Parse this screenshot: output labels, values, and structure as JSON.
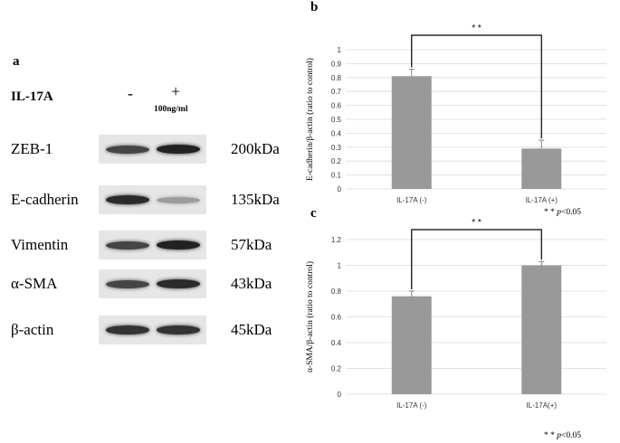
{
  "panel_a": {
    "letter": "a",
    "treatment_label": "IL-17A",
    "minus": "-",
    "plus": "+",
    "dose": "100ng/ml",
    "blots": [
      {
        "protein": "ZEB-1",
        "kda": "200kDa",
        "band_minus": 0.75,
        "band_plus": 0.95
      },
      {
        "protein": "E-cadherin",
        "kda": "135kDa",
        "band_minus": 0.9,
        "band_plus": 0.25
      },
      {
        "protein": "Vimentin",
        "kda": "57kDa",
        "band_minus": 0.75,
        "band_plus": 0.95
      },
      {
        "protein": "α-SMA",
        "kda": "43kDa",
        "band_minus": 0.75,
        "band_plus": 0.9
      },
      {
        "protein": "β-actin",
        "kda": "45kDa",
        "band_minus": 0.85,
        "band_plus": 0.85
      }
    ]
  },
  "chart_data": [
    {
      "panel": "b",
      "type": "bar",
      "categories": [
        "IL-17A (-)",
        "IL-17A (+)"
      ],
      "values": [
        0.81,
        0.29
      ],
      "errors": [
        0.05,
        0.06
      ],
      "ylabel": "E-cadherin/β-actin (ratio to control)",
      "ylim": [
        0,
        1
      ],
      "yticks": [
        "0",
        "0.1",
        "0.2",
        "0.3",
        "0.4",
        "0.5",
        "0.6",
        "0.7",
        "0.8",
        "0.9",
        "1"
      ],
      "grid": true,
      "significance": "* *",
      "footnote_stars": "* *",
      "footnote_p": "p",
      "footnote_value": "<0.05",
      "bar_color": "#999999"
    },
    {
      "panel": "c",
      "type": "bar",
      "categories": [
        "IL-17A (-)",
        "IL-17A(+)"
      ],
      "values": [
        0.76,
        1.0
      ],
      "errors": [
        0.04,
        0.03
      ],
      "ylabel": "α-SMA/β-actin (ratio to control)",
      "ylim": [
        0,
        1.2
      ],
      "yticks": [
        "0",
        "0.2",
        "0.4",
        "0.6",
        "0.8",
        "1",
        "1.2"
      ],
      "grid": true,
      "significance": "* *",
      "footnote_stars": "* *",
      "footnote_p": "p",
      "footnote_value": "<0.05",
      "bar_color": "#999999"
    }
  ]
}
